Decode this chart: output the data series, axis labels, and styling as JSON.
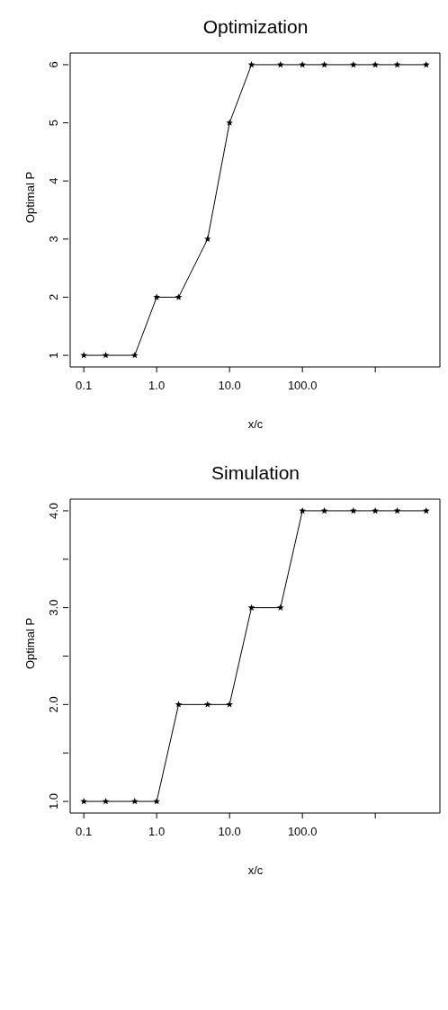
{
  "chart_data": [
    {
      "type": "line",
      "title": "Optimization",
      "xlabel": "x/c",
      "ylabel": "Optimal P",
      "log": "x",
      "marker": "star",
      "line_style": "solid",
      "grid": false,
      "legend": false,
      "x": [
        0.1,
        0.2,
        0.5,
        1,
        2,
        5,
        10,
        20,
        50,
        100,
        200,
        500,
        1000,
        2000,
        5000
      ],
      "series": [
        {
          "color": "#000000",
          "values": [
            1,
            1,
            1,
            2,
            2,
            3,
            5,
            6,
            6,
            6,
            6,
            6,
            6,
            6,
            6
          ]
        }
      ],
      "xlim": [
        0.065,
        7700
      ],
      "xticks": [
        {
          "value": 0.1,
          "label": "0.1"
        },
        {
          "value": 1,
          "label": "1.0"
        },
        {
          "value": 10,
          "label": "10.0"
        },
        {
          "value": 100,
          "label": "100.0"
        },
        {
          "value": 1000,
          "label": null
        }
      ],
      "ylim": [
        0.8,
        6.2
      ],
      "yticks": [
        1,
        2,
        3,
        4,
        5,
        6
      ]
    },
    {
      "type": "line",
      "title": "Simulation",
      "xlabel": "x/c",
      "ylabel": "Optimal P",
      "log": "x",
      "marker": "star",
      "line_style": "solid",
      "grid": false,
      "legend": false,
      "x": [
        0.1,
        0.2,
        0.5,
        1,
        2,
        5,
        10,
        20,
        50,
        100,
        200,
        500,
        1000,
        2000,
        5000
      ],
      "series": [
        {
          "color": "#000000",
          "values": [
            1,
            1,
            1,
            1,
            2,
            2,
            2,
            3,
            3,
            4,
            4,
            4,
            4,
            4,
            4
          ]
        }
      ],
      "xlim": [
        0.065,
        7700
      ],
      "xticks": [
        {
          "value": 0.1,
          "label": "0.1"
        },
        {
          "value": 1,
          "label": "1.0"
        },
        {
          "value": 10,
          "label": "10.0"
        },
        {
          "value": 100,
          "label": "100.0"
        },
        {
          "value": 1000,
          "label": null
        }
      ],
      "ylim": [
        0.88,
        4.12
      ],
      "yticks": [
        {
          "value": 1,
          "label": "1.0"
        },
        {
          "value": 1.5,
          "label": null
        },
        {
          "value": 2,
          "label": "2.0"
        },
        {
          "value": 2.5,
          "label": null
        },
        {
          "value": 3,
          "label": "3.0"
        },
        {
          "value": 3.5,
          "label": null
        },
        {
          "value": 4,
          "label": "4.0"
        }
      ]
    }
  ]
}
